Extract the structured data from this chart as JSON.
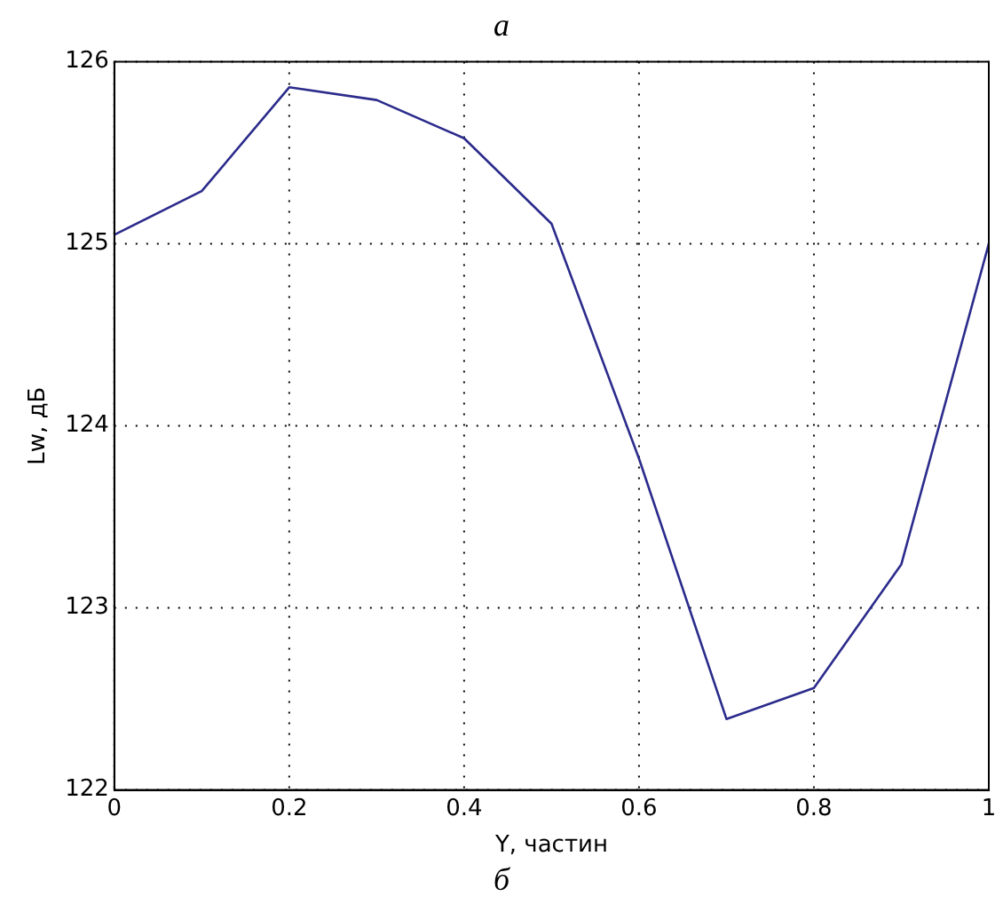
{
  "chart_data": {
    "type": "line",
    "title": "а",
    "xlabel": "Y, частин",
    "ylabel": "Lw, дБ",
    "annotations": [
      "б"
    ],
    "x": [
      0,
      0.1,
      0.2,
      0.3,
      0.4,
      0.5,
      0.6,
      0.7,
      0.8,
      0.9,
      1
    ],
    "series": [
      {
        "color": "#2b2b8c",
        "values": [
          125.05,
          125.29,
          125.86,
          125.79,
          125.58,
          125.11,
          123.82,
          122.39,
          122.56,
          123.24,
          125.0
        ]
      }
    ],
    "xlim": [
      0,
      1
    ],
    "xticks": [
      0,
      0.2,
      0.4,
      0.6,
      0.8,
      1
    ],
    "ylim": [
      122,
      126
    ],
    "yticks": [
      122,
      123,
      124,
      125,
      126
    ],
    "grid": true,
    "legend": false,
    "marker": "none",
    "line_style": "solid"
  }
}
